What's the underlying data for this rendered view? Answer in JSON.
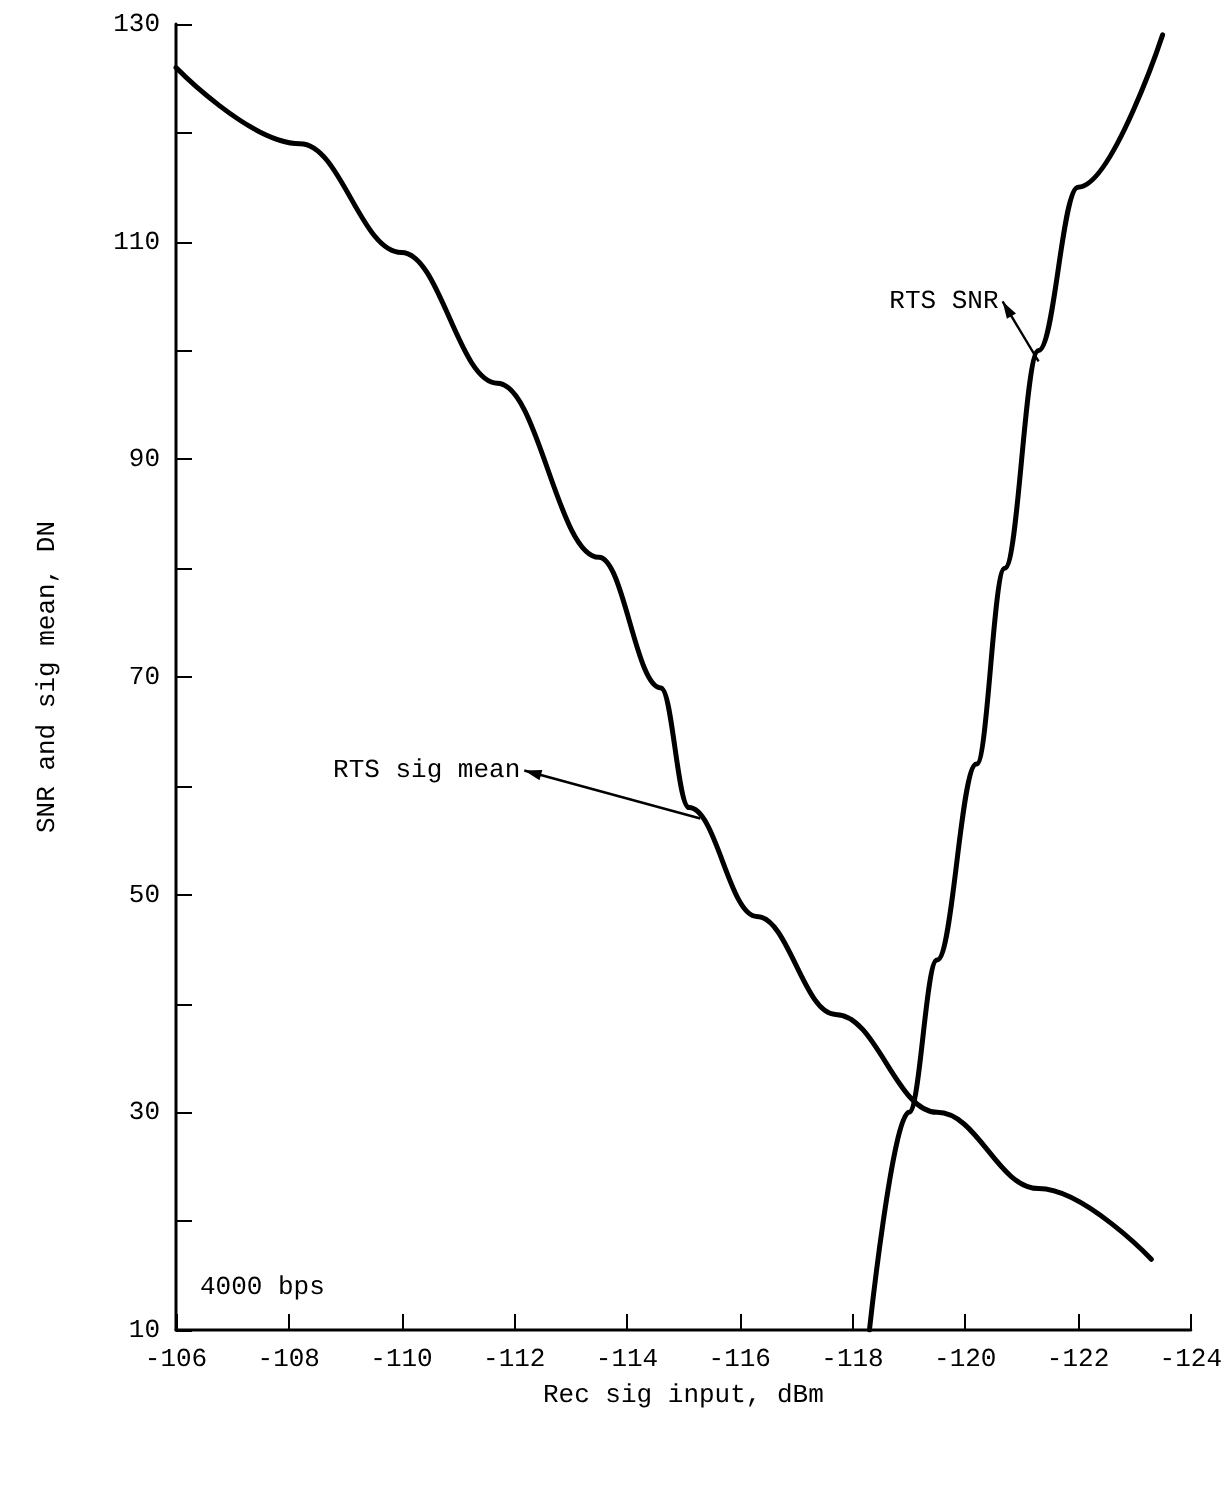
{
  "chart_data": {
    "type": "line",
    "xlabel": "Rec sig input, dBm",
    "ylabel": "SNR and sig mean, DN",
    "xlim": [
      -106,
      -124
    ],
    "ylim": [
      10,
      130
    ],
    "xticks": [
      -106,
      -108,
      -110,
      -112,
      -114,
      -116,
      -118,
      -120,
      -122,
      -124
    ],
    "yticks": [
      10,
      {
        "value": 20,
        "label": null
      },
      30,
      {
        "value": 40,
        "label": null
      },
      50,
      {
        "value": 60,
        "label": null
      },
      70,
      {
        "value": 80,
        "label": null
      },
      90,
      {
        "value": 100,
        "label": null
      },
      110,
      {
        "value": 120,
        "label": null
      },
      130
    ],
    "grid": false,
    "marker": "none",
    "line_style": "solid",
    "series": [
      {
        "color": "#000000",
        "x": [
          -106,
          -108.2,
          -110,
          -111.7,
          -113.5,
          -114.6,
          -115.1,
          -116.3,
          -117.7,
          -119.5,
          -121.3,
          -123.3
        ],
        "values": [
          126,
          119,
          109,
          97,
          81,
          69,
          58,
          48,
          39,
          30,
          23,
          16.5
        ]
      },
      {
        "color": "#000000",
        "x": [
          -118.3,
          -119,
          -119.5,
          -120.2,
          -120.7,
          -121.3,
          -122,
          -123.5
        ],
        "values": [
          10,
          30,
          44,
          62,
          80,
          100,
          115,
          129
        ]
      }
    ],
    "annotations": [
      {
        "text": "RTS sig mean",
        "x": -115.3,
        "y": 57
      },
      {
        "text": "RTS SNR",
        "x": -121.3,
        "y": 99
      },
      "4000 bps"
    ]
  }
}
